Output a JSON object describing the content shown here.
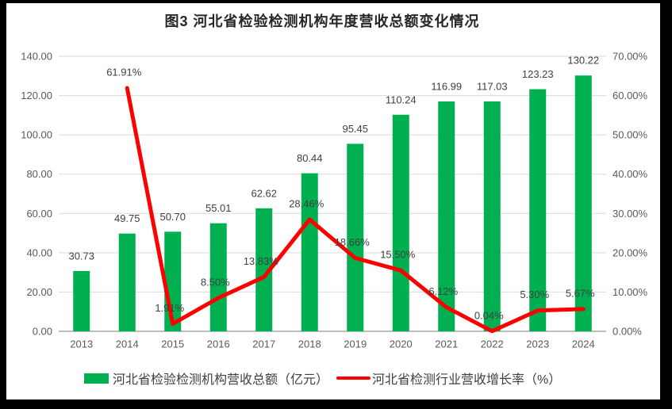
{
  "window": {
    "frame_color": "#000000",
    "background": "#ffffff"
  },
  "chart_data": {
    "type": "bar",
    "subtype": "combo-bar-line",
    "title": "图3 河北省检验检测机构年度营收总额变化情况",
    "categories": [
      "2013",
      "2014",
      "2015",
      "2016",
      "2017",
      "2018",
      "2019",
      "2020",
      "2021",
      "2022",
      "2023",
      "2024"
    ],
    "series": [
      {
        "name": "河北省检验检测机构营收总额（亿元）",
        "type": "bar",
        "axis": "left",
        "values": [
          30.73,
          49.75,
          50.7,
          55.01,
          62.62,
          80.44,
          95.45,
          110.24,
          116.99,
          117.03,
          123.23,
          130.22
        ],
        "labels": [
          "30.73",
          "49.75",
          "50.70",
          "55.01",
          "62.62",
          "80.44",
          "95.45",
          "110.24",
          "116.99",
          "117.03",
          "123.23",
          "130.22"
        ]
      },
      {
        "name": "河北省检测行业营收增长率（%）",
        "type": "line",
        "axis": "right",
        "values": [
          null,
          61.91,
          1.91,
          8.5,
          13.83,
          28.46,
          18.66,
          15.5,
          6.12,
          0.04,
          5.3,
          5.67
        ],
        "labels": [
          "",
          "61.91%",
          "1.91%",
          "8.50%",
          "13.83%",
          "28.46%",
          "18.66%",
          "15.50%",
          "6.12%",
          "0.04%",
          "5.30%",
          "5.67%"
        ]
      }
    ],
    "left_axis": {
      "min": 0,
      "max": 140,
      "step": 20,
      "ylim": [
        0,
        140
      ],
      "ticks": [
        "0.00",
        "20.00",
        "40.00",
        "60.00",
        "80.00",
        "100.00",
        "120.00",
        "140.00"
      ]
    },
    "right_axis": {
      "min": 0,
      "max": 70,
      "step": 10,
      "ylim": [
        0,
        70
      ],
      "ticks": [
        "0.00%",
        "10.00%",
        "20.00%",
        "30.00%",
        "40.00%",
        "50.00%",
        "60.00%",
        "70.00%"
      ]
    },
    "grid": true,
    "legend_position": "bottom",
    "colors": {
      "bar": "#00B050",
      "line": "#FF0000",
      "gridline": "#D9D9D9",
      "axis_line": "#BFBFBF",
      "tick_text": "#595959",
      "data_label_text": "#3F3F3F",
      "title_text": "#262626",
      "legend_text": "#404040"
    }
  }
}
